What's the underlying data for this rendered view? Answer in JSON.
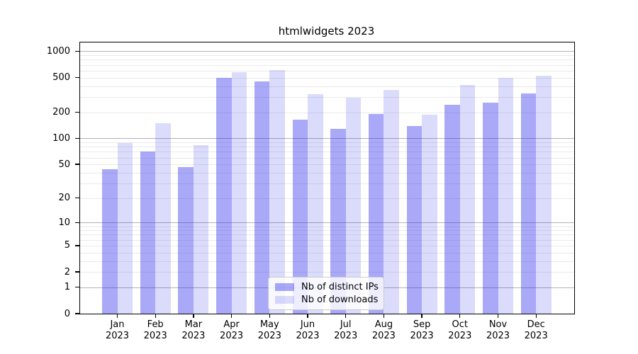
{
  "chart_data": {
    "type": "bar",
    "title": "htmlwidgets 2023",
    "categories": [
      "Jan 2023",
      "Feb 2023",
      "Mar 2023",
      "Apr 2023",
      "May 2023",
      "Jun 2023",
      "Jul 2023",
      "Aug 2023",
      "Sep 2023",
      "Oct 2023",
      "Nov 2023",
      "Dec 2023"
    ],
    "series": [
      {
        "name": "Nb of distinct IPs",
        "color": "rgba(40,40,235,0.40)",
        "values": [
          44,
          71,
          46,
          495,
          455,
          165,
          128,
          190,
          140,
          246,
          256,
          330
        ]
      },
      {
        "name": "Nb of downloads",
        "color": "rgba(40,40,235,0.17)",
        "values": [
          88,
          150,
          84,
          580,
          610,
          320,
          296,
          358,
          187,
          408,
          494,
          520
        ]
      }
    ],
    "y_scale": "log10(value+1)",
    "y_ticks": [
      0,
      1,
      2,
      5,
      10,
      20,
      50,
      100,
      200,
      500,
      1000
    ],
    "y_major_gridlines": [
      1,
      10,
      100,
      1000
    ],
    "y_minor_gridlines": [
      2,
      3,
      4,
      5,
      6,
      7,
      8,
      9,
      20,
      30,
      40,
      50,
      60,
      70,
      80,
      90,
      200,
      300,
      400,
      500,
      600,
      700,
      800,
      900
    ],
    "ylim": [
      0,
      1260
    ],
    "grid": "horizontal",
    "legend_position": "inside-bottom-center",
    "colors": {
      "major_grid": "#b3b3b3",
      "minor_grid": "#eaeaea",
      "axis": "#000000",
      "background": "#ffffff"
    }
  }
}
